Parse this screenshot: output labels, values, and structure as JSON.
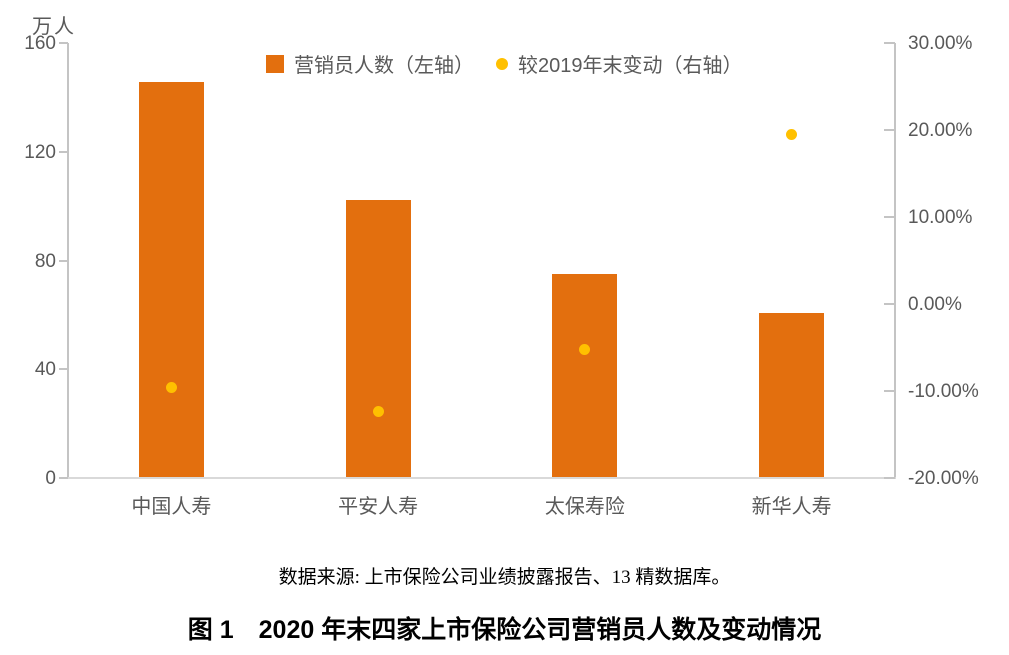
{
  "chart_data": {
    "type": "combo",
    "title": "图 1　2020 年末四家上市保险公司营销员人数及变动情况",
    "categories": [
      "中国人寿",
      "平安人寿",
      "太保寿险",
      "新华人寿"
    ],
    "series": [
      {
        "name": "营销员人数（左轴）",
        "type": "bar",
        "axis": "left",
        "unit": "万人",
        "values": [
          145.8,
          102.4,
          74.9,
          60.6
        ],
        "color": "#E36F0E"
      },
      {
        "name": "较2019年末变动（右轴）",
        "type": "point",
        "axis": "right",
        "unit": "%",
        "values": [
          -9.6,
          -12.3,
          -5.2,
          19.5
        ],
        "color": "#FFC000"
      }
    ],
    "left_axis": {
      "label": "万人",
      "min": 0,
      "max": 160,
      "ticks": [
        "160",
        "120",
        "80",
        "40",
        "0"
      ]
    },
    "right_axis": {
      "min": -20,
      "max": 30,
      "ticks": [
        "30.00%",
        "20.00%",
        "10.00%",
        "0.00%",
        "-10.00%",
        "-20.00%"
      ]
    },
    "grid": false,
    "legend_position": "top"
  },
  "legend": {
    "bar_label": "营销员人数（左轴）",
    "dot_label": "较2019年末变动（右轴）"
  },
  "source_note": "数据来源: 上市保险公司业绩披露报告、13 精数据库。",
  "caption": "图 1　2020 年末四家上市保险公司营销员人数及变动情况",
  "colors": {
    "bar": "#E36F0E",
    "dot": "#FFC000",
    "axis_line": "#C4C4C4",
    "baseline": "#D9D9D9",
    "tick_text": "#595959",
    "caption_text": "#000000"
  }
}
